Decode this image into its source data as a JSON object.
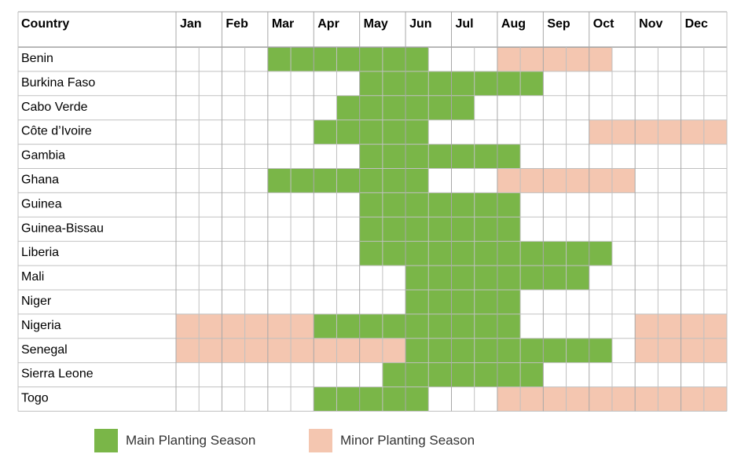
{
  "chart_data": {
    "type": "table",
    "title": "",
    "header": {
      "country": "Country",
      "months": [
        "Jan",
        "Feb",
        "Mar",
        "Apr",
        "May",
        "Jun",
        "Jul",
        "Aug",
        "Sep",
        "Oct",
        "Nov",
        "Dec"
      ]
    },
    "periods_per_month": 2,
    "legend": {
      "main": "Main Planting Season",
      "minor": "Minor Planting Season"
    },
    "colors": {
      "main": "#7ab648",
      "minor": "#f4c6b0",
      "grid": "#c0c0c0",
      "header_border": "#a0a0a0"
    },
    "rows": [
      {
        "country": "Benin",
        "main": [
          [
            4,
            10
          ]
        ],
        "minor": [
          [
            14,
            18
          ]
        ]
      },
      {
        "country": "Burkina Faso",
        "main": [
          [
            8,
            15
          ]
        ],
        "minor": []
      },
      {
        "country": "Cabo Verde",
        "main": [
          [
            7,
            12
          ]
        ],
        "minor": []
      },
      {
        "country": "Côte d’Ivoire",
        "main": [
          [
            6,
            10
          ]
        ],
        "minor": [
          [
            18,
            23
          ]
        ]
      },
      {
        "country": "Gambia",
        "main": [
          [
            8,
            14
          ]
        ],
        "minor": []
      },
      {
        "country": "Ghana",
        "main": [
          [
            4,
            10
          ]
        ],
        "minor": [
          [
            14,
            19
          ]
        ]
      },
      {
        "country": "Guinea",
        "main": [
          [
            8,
            14
          ]
        ],
        "minor": []
      },
      {
        "country": "Guinea-Bissau",
        "main": [
          [
            8,
            14
          ]
        ],
        "minor": []
      },
      {
        "country": "Liberia",
        "main": [
          [
            8,
            18
          ]
        ],
        "minor": []
      },
      {
        "country": "Mali",
        "main": [
          [
            10,
            17
          ]
        ],
        "minor": []
      },
      {
        "country": "Niger",
        "main": [
          [
            10,
            14
          ]
        ],
        "minor": []
      },
      {
        "country": "Nigeria",
        "main": [
          [
            6,
            14
          ]
        ],
        "minor": [
          [
            0,
            5
          ],
          [
            20,
            23
          ]
        ]
      },
      {
        "country": "Senegal",
        "main": [
          [
            10,
            18
          ]
        ],
        "minor": [
          [
            0,
            9
          ],
          [
            20,
            23
          ]
        ]
      },
      {
        "country": "Sierra Leone",
        "main": [
          [
            9,
            15
          ]
        ],
        "minor": []
      },
      {
        "country": "Togo",
        "main": [
          [
            6,
            10
          ]
        ],
        "minor": [
          [
            14,
            23
          ]
        ]
      }
    ]
  }
}
